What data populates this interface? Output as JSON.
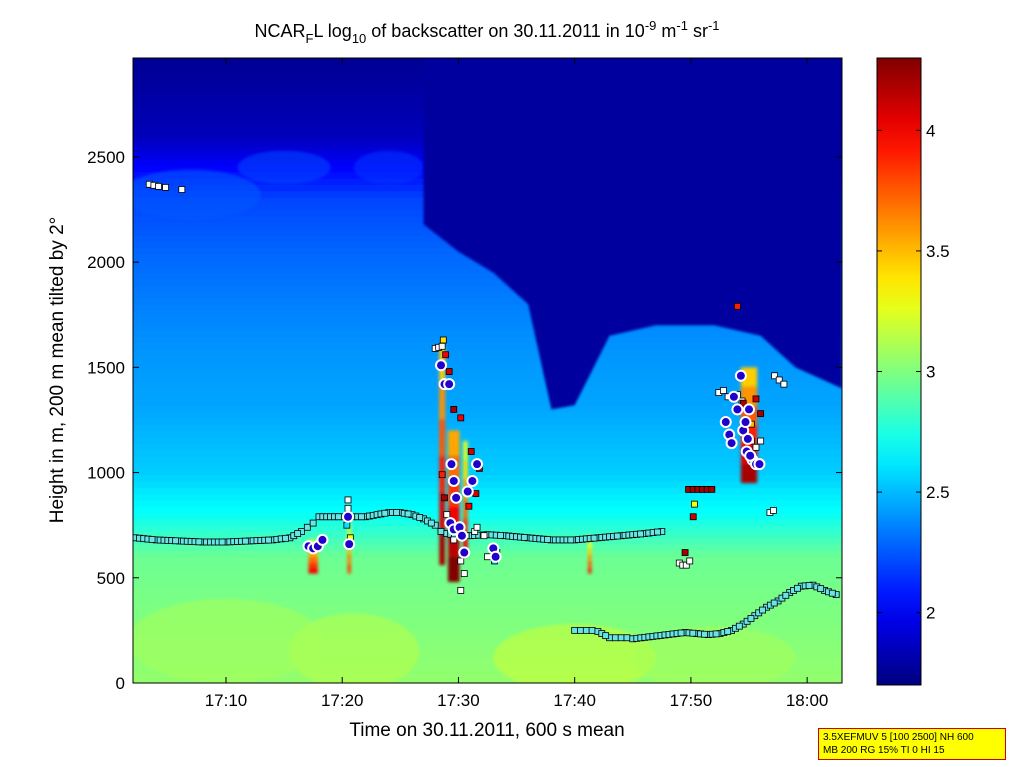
{
  "chart_data": {
    "type": "heatmap",
    "title": "NCAR_FL log_10 of backscatter on 30.11.2011 in 10^-9 m^-1 sr^-1",
    "title_parts": {
      "a": "NCAR",
      "sub1": "F",
      "b": "L log",
      "sub2": "10",
      "c": " of backscatter on 30.11.2011 in 10",
      "sup1": "-9",
      "d": " m",
      "sup2": "-1",
      "e": " sr",
      "sup3": "-1"
    },
    "xlabel": "Time on 30.11.2011, 600 s mean",
    "ylabel": "Height in m, 200 m mean tilted by 2°",
    "x_range": [
      "17:02",
      "18:03"
    ],
    "xlim_minutes": [
      1022,
      1083
    ],
    "ylim": [
      0,
      2970
    ],
    "x_ticks": [
      {
        "label": "17:10",
        "minute": 1030
      },
      {
        "label": "17:20",
        "minute": 1040
      },
      {
        "label": "17:30",
        "minute": 1050
      },
      {
        "label": "17:40",
        "minute": 1060
      },
      {
        "label": "17:50",
        "minute": 1070
      },
      {
        "label": "18:00",
        "minute": 1080
      }
    ],
    "y_ticks": [
      0,
      500,
      1000,
      1500,
      2000,
      2500
    ],
    "colorbar": {
      "colormap": "jet",
      "range": [
        1.7,
        4.3
      ],
      "ticks": [
        2,
        2.5,
        3,
        3.5,
        4
      ]
    },
    "background_profile": [
      {
        "h": 0,
        "v": 3.05
      },
      {
        "h": 300,
        "v": 3.0
      },
      {
        "h": 600,
        "v": 2.95
      },
      {
        "h": 800,
        "v": 2.7
      },
      {
        "h": 1000,
        "v": 2.55
      },
      {
        "h": 1300,
        "v": 2.45
      },
      {
        "h": 1600,
        "v": 2.4
      },
      {
        "h": 2000,
        "v": 2.3
      },
      {
        "h": 2300,
        "v": 2.2
      },
      {
        "h": 2600,
        "v": 1.85
      },
      {
        "h": 2970,
        "v": 1.75
      }
    ],
    "clear_air_region": [
      {
        "t": 1047,
        "top": 2180
      },
      {
        "t": 1050,
        "top": 2050
      },
      {
        "t": 1053,
        "top": 1950
      },
      {
        "t": 1056,
        "top": 1800
      },
      {
        "t": 1058,
        "top": 1300
      },
      {
        "t": 1060,
        "top": 1320
      },
      {
        "t": 1063,
        "top": 1650
      },
      {
        "t": 1067,
        "top": 1700
      },
      {
        "t": 1072,
        "top": 1700
      },
      {
        "t": 1076,
        "top": 1650
      },
      {
        "t": 1079,
        "top": 1500
      },
      {
        "t": 1083,
        "top": 1400
      }
    ],
    "cloud_cells": [
      {
        "t": 1037.5,
        "h_bottom": 520,
        "h_top": 680,
        "width_min": 0.8,
        "value": 4.0
      },
      {
        "t": 1040.6,
        "h_bottom": 520,
        "h_top": 800,
        "width_min": 0.3,
        "value": 3.8
      },
      {
        "t": 1048.6,
        "h_bottom": 560,
        "h_top": 1600,
        "width_min": 0.5,
        "value": 4.2
      },
      {
        "t": 1049.6,
        "h_bottom": 480,
        "h_top": 1200,
        "width_min": 1.0,
        "value": 4.3
      },
      {
        "t": 1050.6,
        "h_bottom": 600,
        "h_top": 1150,
        "width_min": 0.4,
        "value": 4.0
      },
      {
        "t": 1061.3,
        "h_bottom": 520,
        "h_top": 700,
        "width_min": 0.3,
        "value": 3.9
      },
      {
        "t": 1075.0,
        "h_bottom": 950,
        "h_top": 1500,
        "width_min": 1.4,
        "value": 4.2
      }
    ],
    "series": [
      {
        "name": "",
        "marker": "square-white",
        "points": [
          [
            1023.4,
            2370
          ],
          [
            1023.8,
            2365
          ],
          [
            1024.2,
            2360
          ],
          [
            1024.8,
            2355
          ],
          [
            1026.2,
            2345
          ],
          [
            1048.0,
            1590
          ],
          [
            1048.3,
            1595
          ],
          [
            1048.6,
            1600
          ],
          [
            1040.5,
            870
          ],
          [
            1040.5,
            830
          ],
          [
            1049.0,
            800
          ],
          [
            1049.6,
            680
          ],
          [
            1050.2,
            580
          ],
          [
            1050.5,
            520
          ],
          [
            1050.2,
            440
          ],
          [
            1051.4,
            720
          ],
          [
            1051.6,
            740
          ],
          [
            1052.2,
            700
          ],
          [
            1052.5,
            600
          ],
          [
            1069.0,
            570
          ],
          [
            1069.3,
            560
          ],
          [
            1069.6,
            560
          ],
          [
            1069.9,
            580
          ],
          [
            1072.4,
            1380
          ],
          [
            1072.8,
            1390
          ],
          [
            1073.2,
            1360
          ],
          [
            1074.0,
            1370
          ],
          [
            1074.4,
            1340
          ],
          [
            1075.2,
            1150
          ],
          [
            1075.6,
            1120
          ],
          [
            1076.0,
            1150
          ],
          [
            1077.2,
            1460
          ],
          [
            1077.6,
            1440
          ],
          [
            1078.0,
            1420
          ],
          [
            1076.8,
            810
          ],
          [
            1077.1,
            820
          ]
        ]
      },
      {
        "name": "",
        "marker": "square-cyan",
        "points_first_layer": [
          [
            1022.2,
            690
          ],
          [
            1024.0,
            680
          ],
          [
            1026.0,
            675
          ],
          [
            1028.0,
            670
          ],
          [
            1030.0,
            670
          ],
          [
            1032.0,
            675
          ],
          [
            1034.0,
            680
          ],
          [
            1035.5,
            690
          ],
          [
            1036.5,
            720
          ],
          [
            1037.0,
            740
          ],
          [
            1037.5,
            760
          ],
          [
            1038.0,
            790
          ],
          [
            1040.0,
            790
          ],
          [
            1042.0,
            790
          ],
          [
            1044.0,
            810
          ],
          [
            1045.0,
            810
          ],
          [
            1046.0,
            800
          ],
          [
            1047.0,
            780
          ],
          [
            1048.0,
            750
          ],
          [
            1048.5,
            720
          ],
          [
            1049.0,
            710
          ],
          [
            1050.0,
            700
          ],
          [
            1051.0,
            700
          ],
          [
            1052.5,
            705
          ],
          [
            1054.0,
            700
          ],
          [
            1056.0,
            690
          ],
          [
            1058.0,
            680
          ],
          [
            1060.0,
            680
          ],
          [
            1062.0,
            690
          ],
          [
            1064.0,
            700
          ],
          [
            1066.0,
            710
          ],
          [
            1067.5,
            720
          ]
        ],
        "points_second_layer": [
          [
            1060.0,
            250
          ],
          [
            1060.5,
            250
          ],
          [
            1061.0,
            250
          ],
          [
            1061.5,
            250
          ],
          [
            1062.0,
            245
          ],
          [
            1063.0,
            215
          ],
          [
            1063.5,
            215
          ],
          [
            1064.0,
            215
          ],
          [
            1064.5,
            215
          ],
          [
            1065.0,
            210
          ],
          [
            1069.5,
            240
          ],
          [
            1070.5,
            235
          ],
          [
            1071.5,
            230
          ],
          [
            1072.5,
            235
          ],
          [
            1073.5,
            250
          ],
          [
            1074.5,
            280
          ],
          [
            1075.5,
            320
          ],
          [
            1076.5,
            360
          ],
          [
            1077.5,
            390
          ],
          [
            1078.5,
            430
          ],
          [
            1079.5,
            460
          ],
          [
            1080.5,
            465
          ],
          [
            1081.5,
            440
          ],
          [
            1082.5,
            420
          ]
        ]
      },
      {
        "name": "",
        "marker": "circle-blue-white-outline",
        "points": [
          [
            1037.1,
            650
          ],
          [
            1037.5,
            640
          ],
          [
            1037.9,
            650
          ],
          [
            1038.3,
            680
          ],
          [
            1040.5,
            790
          ],
          [
            1040.6,
            660
          ],
          [
            1048.5,
            1510
          ],
          [
            1048.8,
            1420
          ],
          [
            1049.2,
            1420
          ],
          [
            1049.4,
            1040
          ],
          [
            1049.6,
            960
          ],
          [
            1049.8,
            880
          ],
          [
            1049.3,
            760
          ],
          [
            1049.6,
            730
          ],
          [
            1050.1,
            740
          ],
          [
            1050.3,
            700
          ],
          [
            1050.5,
            620
          ],
          [
            1050.8,
            910
          ],
          [
            1051.2,
            960
          ],
          [
            1051.6,
            1040
          ],
          [
            1053.0,
            640
          ],
          [
            1053.2,
            600
          ],
          [
            1073.0,
            1240
          ],
          [
            1073.3,
            1180
          ],
          [
            1073.5,
            1140
          ],
          [
            1073.7,
            1360
          ],
          [
            1074.0,
            1300
          ],
          [
            1074.3,
            1460
          ],
          [
            1074.5,
            1200
          ],
          [
            1074.8,
            1100
          ],
          [
            1075.0,
            1300
          ],
          [
            1075.3,
            1060
          ],
          [
            1075.6,
            1040
          ],
          [
            1075.9,
            1040
          ],
          [
            1074.7,
            1240
          ],
          [
            1074.9,
            1160
          ],
          [
            1075.1,
            1080
          ]
        ]
      },
      {
        "name": "",
        "marker": "square-colored",
        "points": [
          {
            "t": 1048.7,
            "h": 1630,
            "v": 3.4
          },
          {
            "t": 1048.9,
            "h": 1560,
            "v": 4.0
          },
          {
            "t": 1049.2,
            "h": 1480,
            "v": 4.1
          },
          {
            "t": 1049.6,
            "h": 1300,
            "v": 4.2
          },
          {
            "t": 1050.2,
            "h": 1260,
            "v": 4.0
          },
          {
            "t": 1051.1,
            "h": 1100,
            "v": 4.1
          },
          {
            "t": 1051.8,
            "h": 1020,
            "v": 4.2
          },
          {
            "t": 1048.6,
            "h": 990,
            "v": 3.9
          },
          {
            "t": 1048.8,
            "h": 880,
            "v": 4.2
          },
          {
            "t": 1050.9,
            "h": 840,
            "v": 4.0
          },
          {
            "t": 1051.5,
            "h": 900,
            "v": 4.1
          },
          {
            "t": 1053.1,
            "h": 580,
            "v": 2.6
          },
          {
            "t": 1053.3,
            "h": 620,
            "v": 3.0
          },
          {
            "t": 1040.4,
            "h": 750,
            "v": 2.6
          },
          {
            "t": 1040.7,
            "h": 690,
            "v": 3.3
          },
          {
            "t": 1069.8,
            "h": 920,
            "v": 4.2
          },
          {
            "t": 1070.2,
            "h": 920,
            "v": 4.2
          },
          {
            "t": 1070.6,
            "h": 920,
            "v": 4.2
          },
          {
            "t": 1071.0,
            "h": 920,
            "v": 4.2
          },
          {
            "t": 1071.4,
            "h": 920,
            "v": 4.2
          },
          {
            "t": 1071.8,
            "h": 920,
            "v": 4.2
          },
          {
            "t": 1070.3,
            "h": 850,
            "v": 3.3
          },
          {
            "t": 1070.2,
            "h": 790,
            "v": 4.1
          },
          {
            "t": 1069.5,
            "h": 620,
            "v": 4.2
          },
          {
            "t": 1074.0,
            "h": 1790,
            "v": 3.9
          },
          {
            "t": 1074.5,
            "h": 1330,
            "v": 4.2
          },
          {
            "t": 1075.2,
            "h": 1230,
            "v": 3.5
          },
          {
            "t": 1075.6,
            "h": 1350,
            "v": 4.1
          },
          {
            "t": 1076.0,
            "h": 1280,
            "v": 4.2
          }
        ]
      }
    ]
  },
  "settings_box": {
    "line1": "3.5XEFMUV 5 [100 2500] NH 600",
    "line2": "MB 200 RG 15% TI 0 HI 15"
  },
  "colors": {
    "settings_box_bg": "#ffff00",
    "settings_box_border": "#cc0000",
    "marker_edge": "#000000",
    "circle_fill": "#2200cc",
    "circle_outline": "#ffffff"
  }
}
